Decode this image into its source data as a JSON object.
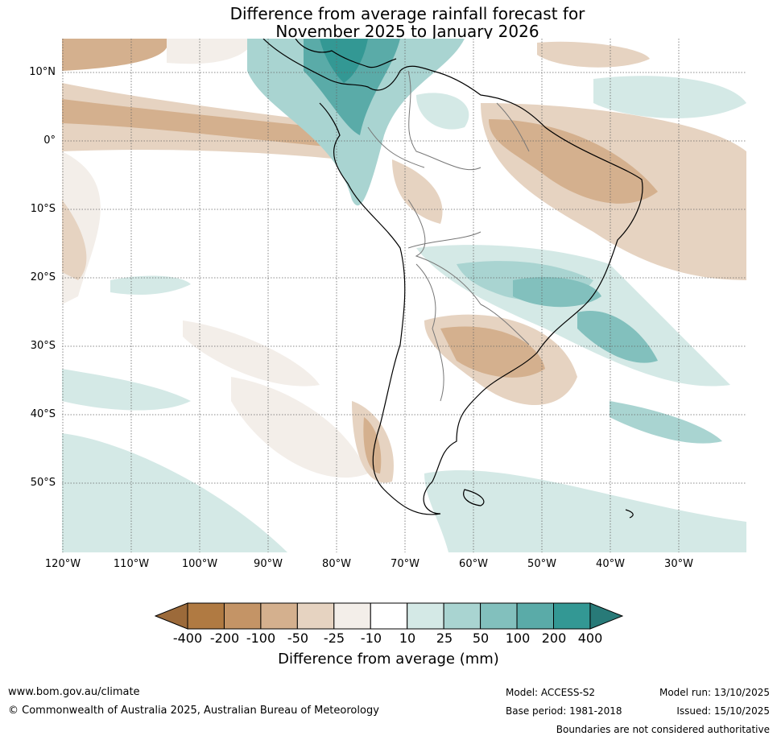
{
  "title": {
    "line1": "Difference from average rainfall forecast for",
    "line2": "November 2025 to January 2026"
  },
  "map": {
    "latitude_labels": [
      "10°N",
      "0°",
      "10°S",
      "20°S",
      "30°S",
      "40°S",
      "50°S"
    ],
    "longitude_labels": [
      "120°W",
      "110°W",
      "100°W",
      "90°W",
      "80°W",
      "70°W",
      "60°W",
      "50°W",
      "40°W",
      "30°W"
    ]
  },
  "colorbar": {
    "labels": [
      "-400",
      "-200",
      "-100",
      "-50",
      "-25",
      "-10",
      "10",
      "25",
      "50",
      "100",
      "200",
      "400"
    ],
    "colors": [
      "#9c6a3a",
      "#b07a42",
      "#c49466",
      "#d4b08e",
      "#e6d3c1",
      "#f3eee9",
      "#ffffff",
      "#d4e9e6",
      "#a9d4d1",
      "#82c0bd",
      "#5aaba8",
      "#339894",
      "#287a78"
    ],
    "title": "Difference from average (mm)"
  },
  "footer": {
    "website": "www.bom.gov.au/climate",
    "copyright": "© Commonwealth of Australia 2025, Australian Bureau of Meteorology",
    "model": "Model: ACCESS-S2",
    "base_period": "Base period: 1981-2018",
    "model_run": "Model run: 13/10/2025",
    "issued": "Issued: 15/10/2025",
    "disclaimer": "Boundaries are not considered authoritative"
  }
}
